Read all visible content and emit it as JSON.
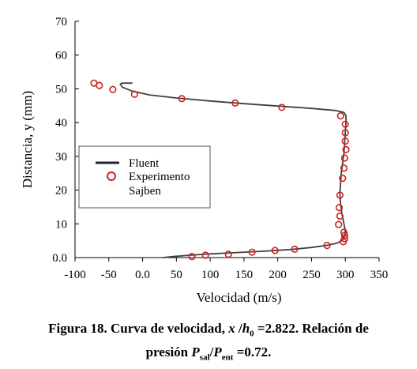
{
  "chart_data": {
    "type": "line+scatter",
    "xlabel": "Velocidad (m/s)",
    "ylabel": "Distancia, y (mm)",
    "xlim": [
      -100,
      350
    ],
    "ylim": [
      0,
      70
    ],
    "x_ticks": [
      "-100",
      "-50",
      "0.0",
      "50",
      "100",
      "150",
      "200",
      "250",
      "300",
      "350"
    ],
    "y_ticks": [
      "0.0",
      "10",
      "20",
      "30",
      "40",
      "50",
      "60",
      "70"
    ],
    "legend": {
      "placement": "left-middle",
      "entries": [
        "Fluent",
        "Experimento",
        "Sajben"
      ]
    },
    "series": [
      {
        "name": "Fluent",
        "kind": "line",
        "color": "#404040",
        "points": [
          [
            30,
            0
          ],
          [
            45,
            0.3
          ],
          [
            70,
            0.7
          ],
          [
            100,
            1.1
          ],
          [
            140,
            1.5
          ],
          [
            180,
            1.9
          ],
          [
            220,
            2.4
          ],
          [
            250,
            3.0
          ],
          [
            272,
            3.6
          ],
          [
            288,
            4.3
          ],
          [
            296,
            5.2
          ],
          [
            299,
            6.5
          ],
          [
            300,
            8
          ],
          [
            298,
            10
          ],
          [
            295,
            13
          ],
          [
            293,
            16
          ],
          [
            292,
            19
          ],
          [
            293,
            22
          ],
          [
            294,
            25
          ],
          [
            296,
            28
          ],
          [
            298,
            31
          ],
          [
            299,
            34
          ],
          [
            300,
            37
          ],
          [
            301,
            40
          ],
          [
            301,
            42
          ],
          [
            298,
            43
          ],
          [
            285,
            43.6
          ],
          [
            250,
            44.2
          ],
          [
            200,
            44.9
          ],
          [
            150,
            45.6
          ],
          [
            100,
            46.4
          ],
          [
            50,
            47.3
          ],
          [
            10,
            48.2
          ],
          [
            -15,
            49.3
          ],
          [
            -30,
            50.5
          ],
          [
            -33,
            51.4
          ],
          [
            -30,
            51.7
          ],
          [
            -15,
            51.7
          ]
        ]
      },
      {
        "name": "Experimento",
        "kind": "scatter",
        "color": "#cc2222",
        "points": [
          [
            73,
            0.3
          ],
          [
            93,
            0.7
          ],
          [
            127,
            1.0
          ],
          [
            162,
            1.6
          ],
          [
            196,
            2.1
          ],
          [
            225,
            2.5
          ],
          [
            273,
            3.6
          ],
          [
            297,
            4.7
          ],
          [
            299,
            5.6
          ],
          [
            299,
            6.6
          ],
          [
            298,
            7.5
          ],
          [
            290,
            9.8
          ],
          [
            292,
            12.3
          ],
          [
            291,
            14.8
          ],
          [
            292,
            18.5
          ],
          [
            296,
            23.5
          ],
          [
            298,
            26.5
          ],
          [
            299,
            29.5
          ],
          [
            301,
            32
          ],
          [
            300,
            34.5
          ],
          [
            300,
            37
          ],
          [
            300,
            39.5
          ],
          [
            293,
            42
          ],
          [
            206,
            44.5
          ],
          [
            137,
            45.8
          ],
          [
            58,
            47.1
          ],
          [
            -12,
            48.4
          ],
          [
            -44,
            49.8
          ],
          [
            -64,
            51
          ],
          [
            -72,
            51.7
          ]
        ]
      }
    ]
  },
  "caption": {
    "prefix": "Figura 18. Curva de velocidad,",
    "x_sym": "x",
    "slash": "/",
    "h_sym": "h",
    "h_sub": "0",
    "ratio_value": "=2.822. Relación de",
    "line2_prefix": "presión",
    "p_sym": "P",
    "p_sub1": "sal",
    "p_sub2": "ent",
    "pressure_value": "=0.72."
  }
}
